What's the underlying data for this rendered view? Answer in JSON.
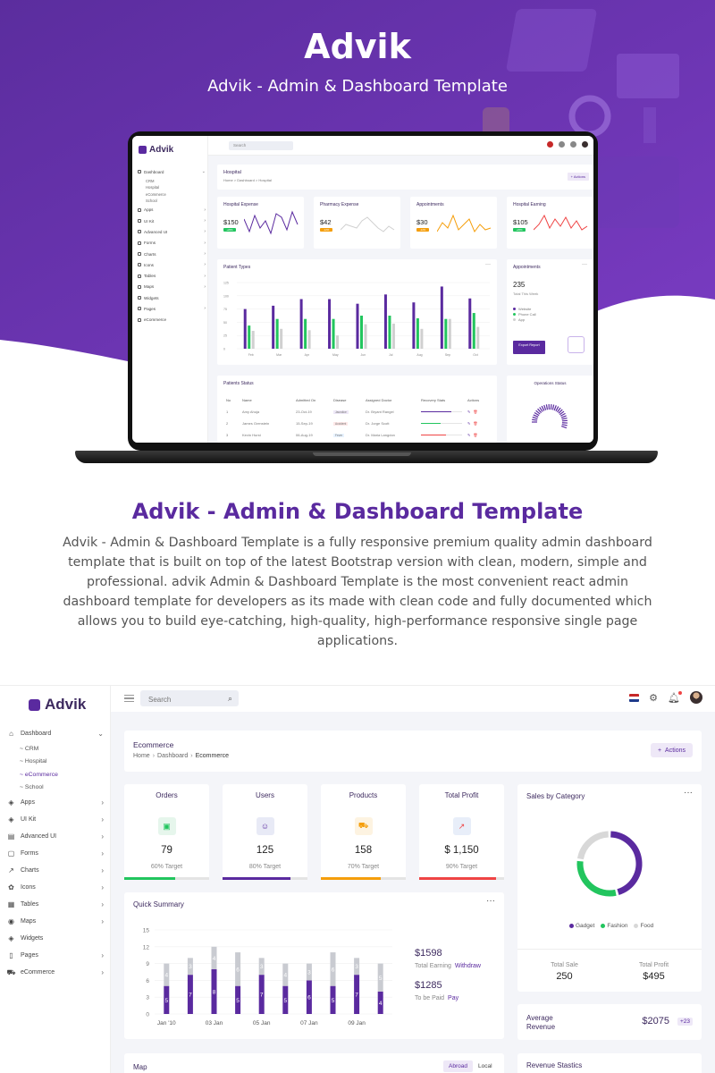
{
  "hero": {
    "title": "Advik",
    "subtitle": "Advik - Admin & Dashboard Template"
  },
  "mock": {
    "brand": "Advik",
    "search_placeholder": "Search",
    "nav": [
      {
        "label": "Dashboard",
        "chev": "⌄",
        "sub": [
          "CRM",
          "Hospital",
          "eCommerce",
          "School"
        ]
      },
      {
        "label": "Apps",
        "chev": "›"
      },
      {
        "label": "UI Kit",
        "chev": "›"
      },
      {
        "label": "Advanced UI",
        "chev": "›"
      },
      {
        "label": "Forms",
        "chev": "›"
      },
      {
        "label": "Charts",
        "chev": "›"
      },
      {
        "label": "Icons",
        "chev": "›"
      },
      {
        "label": "Tables",
        "chev": "›"
      },
      {
        "label": "Maps",
        "chev": "›"
      },
      {
        "label": "Widgets",
        "chev": ""
      },
      {
        "label": "Pages",
        "chev": "›"
      },
      {
        "label": "eCommerce",
        "chev": ""
      }
    ],
    "page_title": "Hospital",
    "crumb": "Home > Dashboard > Hospital",
    "actions": "+ Actions",
    "kpis": [
      {
        "title": "Hospital Expense",
        "value": "$150",
        "badge": "+20%",
        "color": "#5a2a9f",
        "badge_color": "#22c55e"
      },
      {
        "title": "Pharmacy Expense",
        "value": "$42",
        "badge": "-12%",
        "color": "#d0d0d0",
        "badge_color": "#f59e0b"
      },
      {
        "title": "Appointments",
        "value": "$30",
        "badge": "-12%",
        "color": "#f59e0b",
        "badge_color": "#f59e0b"
      },
      {
        "title": "Hospital Earning",
        "value": "$105",
        "badge": "+20%",
        "color": "#ef4444",
        "badge_color": "#22c55e"
      }
    ],
    "patient_types": {
      "title": "Patient Types",
      "yticks": [
        "125",
        "100",
        "75",
        "50",
        "25",
        "0"
      ],
      "months": [
        "Feb",
        "Mar",
        "Apr",
        "May",
        "Jun",
        "Jul",
        "Aug",
        "Sep",
        "Oct"
      ]
    },
    "appointments": {
      "title": "Appointments",
      "value": "235",
      "sub": "Total This Week",
      "legend": [
        "Website",
        "Phone Call",
        "App"
      ],
      "export": "Export Report"
    },
    "patients_status": {
      "title": "Patients Status",
      "headers": [
        "No",
        "Name",
        "Admitted On",
        "Disease",
        "Assigned Doctor",
        "Recovery Stats",
        "Actions"
      ],
      "rows": [
        [
          "1",
          "Amy Ahuja",
          "23-Oct-19",
          "Jaundice",
          "Dr. Bryant Rangel"
        ],
        [
          "2",
          "James Grenstein",
          "15-Sep-19",
          "Accident",
          "Dr. Jorge Scott"
        ],
        [
          "3",
          "Kevin Hurst",
          "06-Aug-19",
          "Fever",
          "Dr. Maria Langdon"
        ]
      ]
    },
    "operations": {
      "title": "Operations Status"
    }
  },
  "description": {
    "title": "Advik - Admin & Dashboard Template",
    "body": "Advik - Admin & Dashboard Template is a fully responsive premium quality admin dashboard template that is built on top of the latest Bootstrap version with clean, modern, simple and professional. advik Admin & Dashboard Template is the most convenient react admin dashboard template for developers as its made with clean code and fully documented which allows you to build eye-catching, high-quality, high-performance responsive single page applications."
  },
  "dashboard": {
    "brand": "Advik",
    "search_placeholder": "Search",
    "nav": [
      {
        "label": "Dashboard",
        "icon": "⌂",
        "chev": "⌄"
      },
      {
        "label": "Apps",
        "icon": "◈",
        "chev": "›"
      },
      {
        "label": "UI Kit",
        "icon": "◈",
        "chev": "›"
      },
      {
        "label": "Advanced UI",
        "icon": "▤",
        "chev": "›"
      },
      {
        "label": "Forms",
        "icon": "▢",
        "chev": "›"
      },
      {
        "label": "Charts",
        "icon": "↗",
        "chev": "›"
      },
      {
        "label": "Icons",
        "icon": "✿",
        "chev": "›"
      },
      {
        "label": "Tables",
        "icon": "▦",
        "chev": "›"
      },
      {
        "label": "Maps",
        "icon": "◉",
        "chev": "›"
      },
      {
        "label": "Widgets",
        "icon": "◈",
        "chev": ""
      },
      {
        "label": "Pages",
        "icon": "▯",
        "chev": "›"
      },
      {
        "label": "eCommerce",
        "icon": "⛟",
        "chev": "›"
      }
    ],
    "dashboard_sub": [
      "~ CRM",
      "~ Hospital",
      "~ eCommerce",
      "~ School"
    ],
    "active_sub": 2,
    "page": {
      "title": "Ecommerce",
      "crumbs": [
        "Home",
        "Dashboard",
        "Ecommerce"
      ],
      "actions": "Actions"
    },
    "stats": [
      {
        "title": "Orders",
        "value": "79",
        "target": "60% Target",
        "progress": 0.6,
        "color": "#22c55e",
        "icon": "▣",
        "bg": "#e6f6ec"
      },
      {
        "title": "Users",
        "value": "125",
        "target": "80% Target",
        "progress": 0.8,
        "color": "#5a2a9f",
        "icon": "☺",
        "bg": "#e8eaf6"
      },
      {
        "title": "Products",
        "value": "158",
        "target": "70% Target",
        "progress": 0.7,
        "color": "#f59e0b",
        "icon": "⛟",
        "bg": "#fdf3e1"
      },
      {
        "title": "Total Profit",
        "value": "$ 1,150",
        "target": "90% Target",
        "progress": 0.9,
        "color": "#ef4444",
        "icon": "↗",
        "bg": "#e8eef9"
      }
    ],
    "sales_by_category": {
      "title": "Sales by Category",
      "legend": [
        {
          "name": "Gadget",
          "color": "#5a2a9f"
        },
        {
          "name": "Fashion",
          "color": "#22c55e"
        },
        {
          "name": "Food",
          "color": "#d8d8d8"
        }
      ],
      "total_sale_label": "Total Sale",
      "total_sale_value": "250",
      "total_profit_label": "Total Profit",
      "total_profit_value": "$495"
    },
    "quick_summary": {
      "title": "Quick Summary",
      "earning_value": "$1598",
      "earning_label": "Total Earning",
      "withdraw": "Withdraw",
      "paid_value": "$1285",
      "paid_label": "To be Paid",
      "pay": "Pay"
    },
    "avg_revenue": {
      "label": "Average Revenue",
      "value": "$2075",
      "badge": "+23"
    },
    "map": {
      "title": "Map",
      "abroad": "Abroad",
      "local": "Local"
    },
    "revenue_stats": {
      "title": "Revenue Stastics"
    }
  },
  "chart_data": [
    {
      "type": "bar",
      "title": "Quick Summary",
      "categories": [
        "Jan '10",
        "",
        "03 Jan",
        "",
        "05 Jan",
        "",
        "07 Jan",
        "",
        "09 Jan",
        ""
      ],
      "xticks": [
        "Jan '10",
        "03 Jan",
        "05 Jan",
        "07 Jan",
        "09 Jan"
      ],
      "yticks": [
        "15",
        "12",
        "9",
        "6",
        "3",
        "0"
      ],
      "ylim": [
        0,
        15
      ],
      "stacked": true,
      "series": [
        {
          "values": [
            5,
            7,
            8,
            5,
            7,
            5,
            6,
            5,
            7,
            4
          ],
          "color": "#5a2a9f"
        },
        {
          "values": [
            4,
            3,
            4,
            6,
            3,
            4,
            3,
            6,
            3,
            5
          ],
          "color": "#c9cbd1"
        }
      ]
    },
    {
      "type": "pie",
      "title": "Sales by Category",
      "categories": [
        "Gadget",
        "Fashion",
        "Food"
      ],
      "values": [
        46,
        31,
        23
      ],
      "colors": [
        "#5a2a9f",
        "#22c55e",
        "#d8d8d8"
      ]
    }
  ]
}
